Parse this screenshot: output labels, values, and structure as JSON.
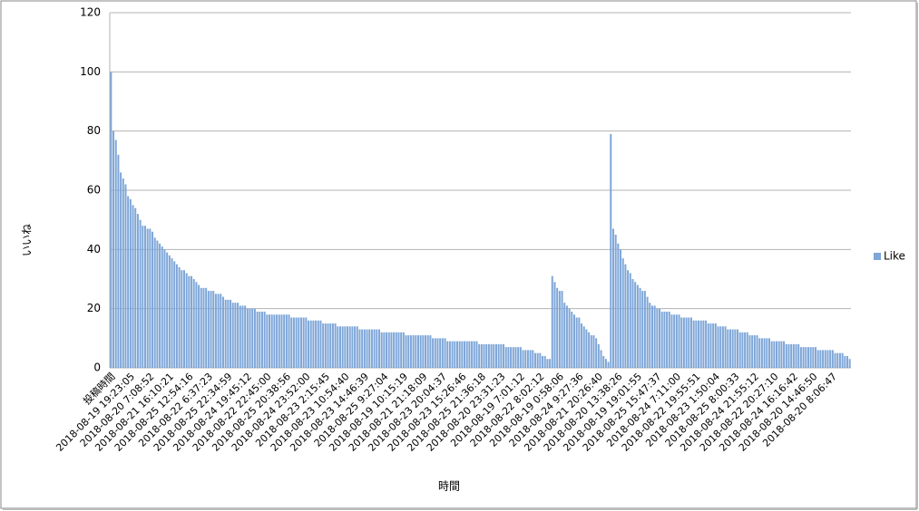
{
  "chart_data": {
    "type": "bar",
    "y_label": "いいね",
    "x_label": "時間",
    "ylim": [
      0,
      120
    ],
    "yticks": [
      0,
      20,
      40,
      60,
      80,
      100,
      120
    ],
    "grid": true,
    "legend": "right",
    "categories": [
      "投稿時間",
      null,
      null,
      null,
      null,
      null,
      null,
      null,
      "2018-08-19 19:23:05",
      null,
      null,
      null,
      null,
      null,
      null,
      null,
      "2018-08-20 7:08:52",
      null,
      null,
      null,
      null,
      null,
      null,
      null,
      "2018-08-21 16:10:21",
      null,
      null,
      null,
      null,
      null,
      null,
      null,
      "2018-08-25 12:54:16",
      null,
      null,
      null,
      null,
      null,
      null,
      null,
      "2018-08-22 6:37:23",
      null,
      null,
      null,
      null,
      null,
      null,
      null,
      "2018-08-25 22:34:59",
      null,
      null,
      null,
      null,
      null,
      null,
      null,
      "2018-08-24 19:45:12",
      null,
      null,
      null,
      null,
      null,
      null,
      null,
      "2018-08-22 22:45:00",
      null,
      null,
      null,
      null,
      null,
      null,
      null,
      "2018-08-25 20:38:56",
      null,
      null,
      null,
      null,
      null,
      null,
      null,
      "2018-08-24 23:52:00",
      null,
      null,
      null,
      null,
      null,
      null,
      null,
      "2018-08-23 2:15:45",
      null,
      null,
      null,
      null,
      null,
      null,
      null,
      "2018-08-23 10:54:40",
      null,
      null,
      null,
      null,
      null,
      null,
      null,
      "2018-08-23 14:46:39",
      null,
      null,
      null,
      null,
      null,
      null,
      null,
      "2018-08-25 9:27:04",
      null,
      null,
      null,
      null,
      null,
      null,
      null,
      "2018-08-19 10:15:19",
      null,
      null,
      null,
      null,
      null,
      null,
      null,
      "2018-08-21 21:18:09",
      null,
      null,
      null,
      null,
      null,
      null,
      null,
      "2018-08-23 20:04:37",
      null,
      null,
      null,
      null,
      null,
      null,
      null,
      "2018-08-23 15:26:46",
      null,
      null,
      null,
      null,
      null,
      null,
      null,
      "2018-08-25 21:36:18",
      null,
      null,
      null,
      null,
      null,
      null,
      null,
      "2018-08-20 23:31:23",
      null,
      null,
      null,
      null,
      null,
      null,
      null,
      "2018-08-19 7:01:12",
      null,
      null,
      null,
      null,
      null,
      null,
      null,
      "2018-08-22 8:02:12",
      null,
      null,
      null,
      null,
      null,
      null,
      null,
      "2018-08-19 0:58:06",
      null,
      null,
      null,
      null,
      null,
      null,
      null,
      "2018-08-24 9:27:36",
      null,
      null,
      null,
      null,
      null,
      null,
      null,
      "2018-08-21 20:26:40",
      null,
      null,
      null,
      null,
      null,
      null,
      null,
      "2018-08-20 13:38:26",
      null,
      null,
      null,
      null,
      null,
      null,
      null,
      "2018-08-19 19:01:55",
      null,
      null,
      null,
      null,
      null,
      null,
      null,
      "2018-08-25 15:47:37",
      null,
      null,
      null,
      null,
      null,
      null,
      null,
      "2018-08-24 7:11:00",
      null,
      null,
      null,
      null,
      null,
      null,
      null,
      "2018-08-22 19:55:51",
      null,
      null,
      null,
      null,
      null,
      null,
      null,
      "2018-08-23 1:50:04",
      null,
      null,
      null,
      null,
      null,
      null,
      null,
      "2018-08-25 8:00:33",
      null,
      null,
      null,
      null,
      null,
      null,
      null,
      "2018-08-24 21:55:12",
      null,
      null,
      null,
      null,
      null,
      null,
      null,
      "2018-08-22 20:27:10",
      null,
      null,
      null,
      null,
      null,
      null,
      null,
      "2018-08-24 16:16:42",
      null,
      null,
      null,
      null,
      null,
      null,
      null,
      "2018-08-20 14:46:50",
      null,
      null,
      null,
      null,
      null,
      null,
      null,
      "2018-08-20 8:06:47",
      null,
      null,
      null,
      null,
      null,
      null,
      null
    ],
    "series": [
      {
        "name": "Like",
        "color": "#7ea6d8",
        "values": [
          100,
          80,
          77,
          72,
          66,
          64,
          62,
          58,
          57,
          55,
          54,
          52,
          50,
          48,
          48,
          47,
          47,
          46,
          44,
          43,
          42,
          41,
          40,
          39,
          38,
          37,
          36,
          35,
          34,
          33,
          33,
          32,
          31,
          31,
          30,
          29,
          28,
          27,
          27,
          27,
          26,
          26,
          26,
          25,
          25,
          25,
          24,
          23,
          23,
          23,
          22,
          22,
          22,
          21,
          21,
          21,
          20,
          20,
          20,
          20,
          19,
          19,
          19,
          19,
          18,
          18,
          18,
          18,
          18,
          18,
          18,
          18,
          18,
          18,
          17,
          17,
          17,
          17,
          17,
          17,
          17,
          16,
          16,
          16,
          16,
          16,
          16,
          15,
          15,
          15,
          15,
          15,
          15,
          14,
          14,
          14,
          14,
          14,
          14,
          14,
          14,
          14,
          13,
          13,
          13,
          13,
          13,
          13,
          13,
          13,
          13,
          12,
          12,
          12,
          12,
          12,
          12,
          12,
          12,
          12,
          12,
          11,
          11,
          11,
          11,
          11,
          11,
          11,
          11,
          11,
          11,
          11,
          10,
          10,
          10,
          10,
          10,
          10,
          9,
          9,
          9,
          9,
          9,
          9,
          9,
          9,
          9,
          9,
          9,
          9,
          9,
          8,
          8,
          8,
          8,
          8,
          8,
          8,
          8,
          8,
          8,
          8,
          7,
          7,
          7,
          7,
          7,
          7,
          7,
          6,
          6,
          6,
          6,
          6,
          5,
          5,
          5,
          4,
          4,
          3,
          3,
          31,
          29,
          27,
          26,
          26,
          22,
          21,
          20,
          19,
          18,
          17,
          17,
          15,
          14,
          13,
          12,
          11,
          11,
          10,
          8,
          6,
          4,
          3,
          2,
          79,
          47,
          45,
          42,
          40,
          37,
          35,
          33,
          32,
          30,
          29,
          28,
          27,
          26,
          26,
          24,
          22,
          21,
          21,
          20,
          20,
          19,
          19,
          19,
          19,
          18,
          18,
          18,
          18,
          17,
          17,
          17,
          17,
          17,
          16,
          16,
          16,
          16,
          16,
          16,
          15,
          15,
          15,
          15,
          14,
          14,
          14,
          14,
          13,
          13,
          13,
          13,
          13,
          12,
          12,
          12,
          12,
          11,
          11,
          11,
          11,
          10,
          10,
          10,
          10,
          10,
          9,
          9,
          9,
          9,
          9,
          9,
          8,
          8,
          8,
          8,
          8,
          8,
          7,
          7,
          7,
          7,
          7,
          7,
          7,
          6,
          6,
          6,
          6,
          6,
          6,
          6,
          5,
          5,
          5,
          5,
          4,
          4,
          3
        ]
      }
    ]
  }
}
